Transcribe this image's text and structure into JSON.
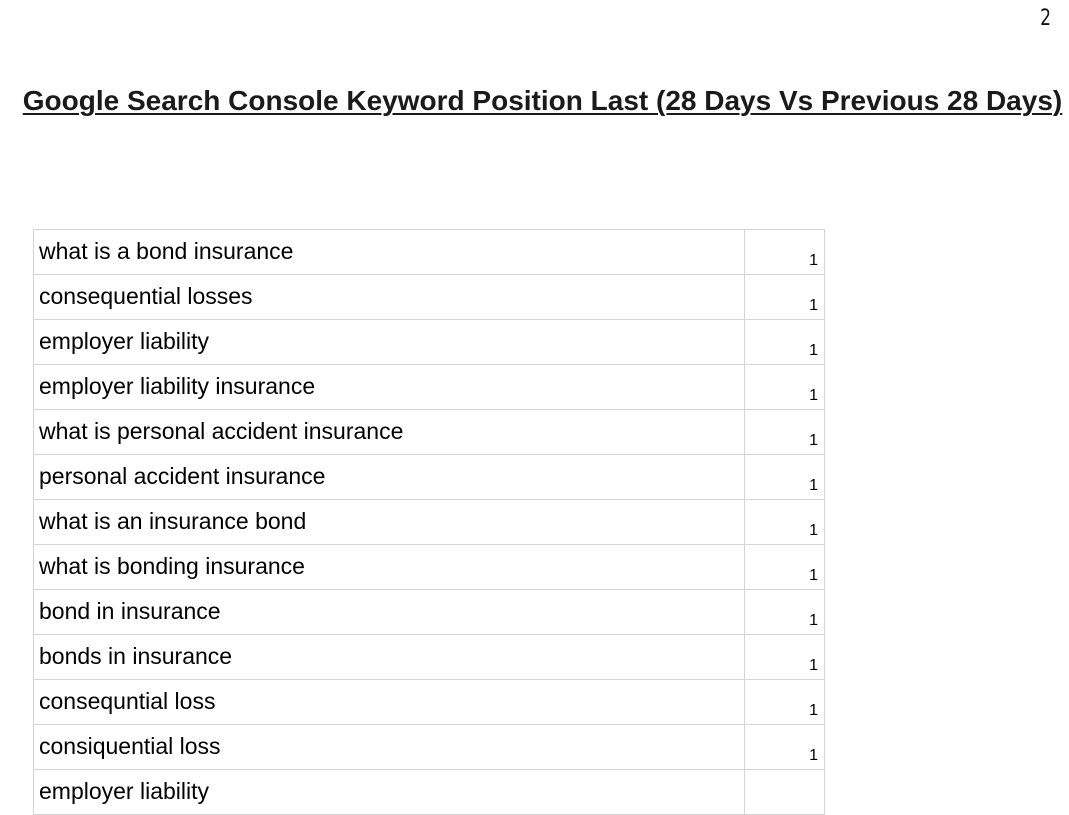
{
  "page": {
    "number": "2",
    "title": "Google Search Console Keyword Position Last (28 Days Vs Previous 28 Days)"
  },
  "table": {
    "rows": [
      {
        "keyword": "what is a bond insurance",
        "position": "1"
      },
      {
        "keyword": "consequential losses",
        "position": "1"
      },
      {
        "keyword": "employer liability",
        "position": "1"
      },
      {
        "keyword": "employer liability insurance",
        "position": "1"
      },
      {
        "keyword": "what is personal accident insurance",
        "position": "1"
      },
      {
        "keyword": "personal accident insurance",
        "position": "1"
      },
      {
        "keyword": "what is an insurance bond",
        "position": "1"
      },
      {
        "keyword": "what is bonding insurance",
        "position": "1"
      },
      {
        "keyword": "bond in insurance",
        "position": "1"
      },
      {
        "keyword": "bonds in insurance",
        "position": "1"
      },
      {
        "keyword": "consequntial loss",
        "position": "1"
      },
      {
        "keyword": "consiquential loss",
        "position": "1"
      },
      {
        "keyword": "employer liability",
        "position": ""
      }
    ]
  },
  "colors": {
    "border": "#d4d4d4",
    "text": "#000000"
  }
}
